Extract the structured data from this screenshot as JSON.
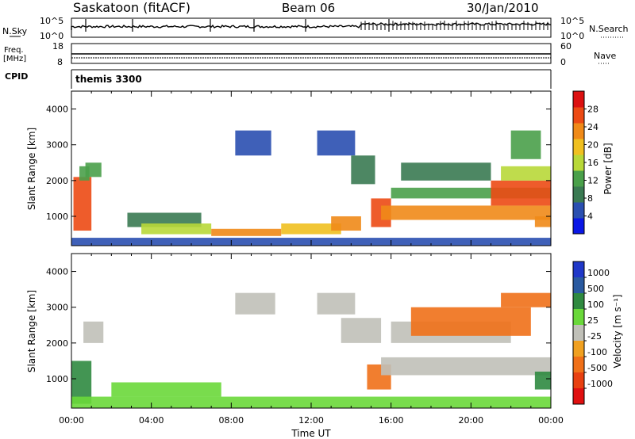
{
  "header": {
    "station": "Saskatoon (fitACF)",
    "beam": "Beam 06",
    "date": "30/Jan/2010"
  },
  "summary": {
    "nsky_label": "N.Sky",
    "nsearch_label": "N.Search",
    "nsky_ticks": [
      "10^5",
      "10^0"
    ],
    "nsearch_ticks": [
      "10^5",
      "10^0"
    ],
    "freq_label_1": "Freq.",
    "freq_label_2": "[MHz]",
    "freq_ticks": [
      "18",
      "8"
    ],
    "nave_label": "Nave",
    "nave_ticks": [
      "60",
      "0"
    ],
    "cpid_label": "CPID",
    "cpid_value": "themis 3300"
  },
  "axes": {
    "ylabel": "Slant Range [km]",
    "xlabel": "Time UT",
    "y_ticks": [
      "1000",
      "2000",
      "3000",
      "4000"
    ],
    "x_ticks": [
      "00:00",
      "04:00",
      "08:00",
      "12:00",
      "16:00",
      "20:00",
      "00:00"
    ]
  },
  "colors": {
    "power_scale": [
      "#0a17e6",
      "#2a4fb0",
      "#3a7a52",
      "#4aa04a",
      "#b8d838",
      "#f0c020",
      "#f08a18",
      "#ec4a14",
      "#dc1010"
    ],
    "velocity_scale": [
      "#2038c8",
      "#2a5aa0",
      "#2f8a40",
      "#6ad83a",
      "#c0c0b8",
      "#f0a020",
      "#f07018",
      "#e84010",
      "#e01010"
    ]
  },
  "chart_data": [
    {
      "type": "heatmap",
      "panel": "power",
      "ylabel": "Slant Range [km]",
      "xlabel": "",
      "xlim": [
        0,
        24
      ],
      "ylim": [
        180,
        4500
      ],
      "colorbar": {
        "label": "Power [dB]",
        "ticks": [
          "4",
          "8",
          "12",
          "16",
          "20",
          "24",
          "28"
        ],
        "min": 0,
        "max": 32
      },
      "regions": [
        {
          "x0": 0.1,
          "x1": 1.0,
          "y0": 600,
          "y1": 2100,
          "value": 26
        },
        {
          "x0": 0.4,
          "x1": 0.9,
          "y0": 2000,
          "y1": 2400,
          "value": 12
        },
        {
          "x0": 0.7,
          "x1": 1.5,
          "y0": 2100,
          "y1": 2500,
          "value": 14
        },
        {
          "x0": 0.0,
          "x1": 24.0,
          "y0": 180,
          "y1": 400,
          "value": 6
        },
        {
          "x0": 2.8,
          "x1": 6.5,
          "y0": 700,
          "y1": 1100,
          "value": 9
        },
        {
          "x0": 3.5,
          "x1": 7.0,
          "y0": 500,
          "y1": 800,
          "value": 16
        },
        {
          "x0": 7.0,
          "x1": 10.5,
          "y0": 450,
          "y1": 650,
          "value": 22
        },
        {
          "x0": 8.2,
          "x1": 10.0,
          "y0": 2700,
          "y1": 3400,
          "value": 7
        },
        {
          "x0": 10.5,
          "x1": 13.5,
          "y0": 500,
          "y1": 800,
          "value": 18
        },
        {
          "x0": 12.3,
          "x1": 14.2,
          "y0": 2700,
          "y1": 3400,
          "value": 7
        },
        {
          "x0": 13.0,
          "x1": 14.5,
          "y0": 600,
          "y1": 1000,
          "value": 22
        },
        {
          "x0": 14.0,
          "x1": 15.2,
          "y0": 1900,
          "y1": 2700,
          "value": 10
        },
        {
          "x0": 15.0,
          "x1": 16.0,
          "y0": 700,
          "y1": 1500,
          "value": 26
        },
        {
          "x0": 15.5,
          "x1": 24.0,
          "y0": 900,
          "y1": 1300,
          "value": 24
        },
        {
          "x0": 16.0,
          "x1": 24.0,
          "y0": 1500,
          "y1": 1800,
          "value": 12
        },
        {
          "x0": 16.5,
          "x1": 21.0,
          "y0": 2000,
          "y1": 2500,
          "value": 10
        },
        {
          "x0": 21.0,
          "x1": 24.0,
          "y0": 1300,
          "y1": 2000,
          "value": 26
        },
        {
          "x0": 21.5,
          "x1": 24.0,
          "y0": 2000,
          "y1": 2400,
          "value": 17
        },
        {
          "x0": 22.0,
          "x1": 23.5,
          "y0": 2600,
          "y1": 3400,
          "value": 12
        },
        {
          "x0": 23.2,
          "x1": 24.0,
          "y0": 700,
          "y1": 1000,
          "value": 22
        }
      ]
    },
    {
      "type": "heatmap",
      "panel": "velocity",
      "ylabel": "Slant Range [km]",
      "xlabel": "Time UT",
      "xlim": [
        0,
        24
      ],
      "ylim": [
        180,
        4500
      ],
      "colorbar": {
        "label": "Velocity [m s⁻¹]",
        "ticks": [
          "1000",
          "500",
          "100",
          "25",
          "-25",
          "-100",
          "-500",
          "-1000"
        ]
      },
      "regions": [
        {
          "x0": 0.0,
          "x1": 1.0,
          "y0": 300,
          "y1": 1500,
          "value": 100
        },
        {
          "x0": 0.6,
          "x1": 1.6,
          "y0": 2000,
          "y1": 2600,
          "value": 0
        },
        {
          "x0": 0.0,
          "x1": 24.0,
          "y0": 180,
          "y1": 500,
          "value": 60
        },
        {
          "x0": 2.0,
          "x1": 7.5,
          "y0": 500,
          "y1": 900,
          "value": 80
        },
        {
          "x0": 8.2,
          "x1": 10.2,
          "y0": 2800,
          "y1": 3400,
          "value": 0
        },
        {
          "x0": 12.3,
          "x1": 14.2,
          "y0": 2800,
          "y1": 3400,
          "value": 0
        },
        {
          "x0": 13.5,
          "x1": 15.5,
          "y0": 2000,
          "y1": 2700,
          "value": 0
        },
        {
          "x0": 14.8,
          "x1": 16.0,
          "y0": 700,
          "y1": 1400,
          "value": -300
        },
        {
          "x0": 15.5,
          "x1": 24.0,
          "y0": 1100,
          "y1": 1600,
          "value": 0
        },
        {
          "x0": 16.0,
          "x1": 22.0,
          "y0": 2000,
          "y1": 2600,
          "value": 0
        },
        {
          "x0": 17.0,
          "x1": 23.0,
          "y0": 2200,
          "y1": 3000,
          "value": -300
        },
        {
          "x0": 21.5,
          "x1": 24.0,
          "y0": 3000,
          "y1": 3400,
          "value": -300
        },
        {
          "x0": 23.2,
          "x1": 24.0,
          "y0": 700,
          "y1": 1200,
          "value": 100
        }
      ]
    }
  ]
}
